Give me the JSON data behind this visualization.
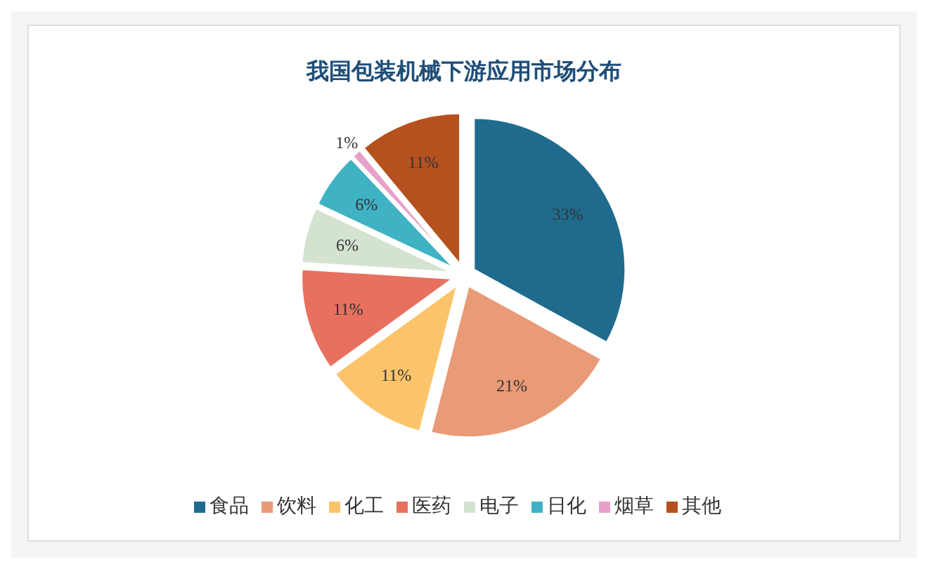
{
  "chart_data": {
    "type": "pie",
    "title": "我国包装机械下游应用市场分布",
    "categories": [
      "食品",
      "饮料",
      "化工",
      "医药",
      "电子",
      "日化",
      "烟草",
      "其他"
    ],
    "values": [
      33,
      21,
      11,
      11,
      6,
      6,
      1,
      11
    ],
    "colors": [
      "#1f6b8e",
      "#e99a76",
      "#fcc46a",
      "#e8705f",
      "#d4e3d0",
      "#3fb2c4",
      "#e8a0c8",
      "#b5501f"
    ],
    "value_labels": [
      "33%",
      "21%",
      "11%",
      "11%",
      "6%",
      "6%",
      "1%",
      "11%"
    ],
    "legend": "bottom"
  }
}
